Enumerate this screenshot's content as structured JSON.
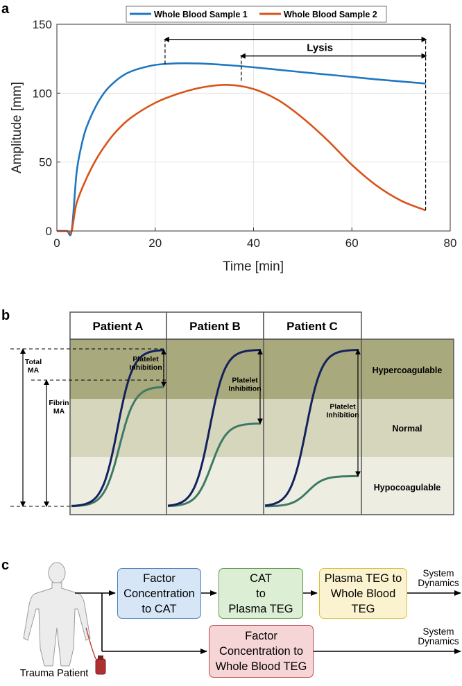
{
  "panels": {
    "a": "a",
    "b": "b",
    "c": "c"
  },
  "chart_data": [
    {
      "type": "line",
      "panel": "a",
      "xlabel": "Time [min]",
      "ylabel": "Amplitude [mm]",
      "xlim": [
        0,
        80
      ],
      "ylim": [
        0,
        150
      ],
      "xticks": [
        0,
        20,
        40,
        60,
        80
      ],
      "yticks": [
        0,
        50,
        100,
        150
      ],
      "grid": true,
      "legend_position": "top-center",
      "series": [
        {
          "name": "Whole Blood Sample 1",
          "color": "#1f77c0",
          "x": [
            0,
            2,
            3,
            4,
            5,
            6,
            8,
            10,
            12,
            14,
            16,
            18,
            20,
            22,
            24,
            26,
            28,
            30,
            35,
            40,
            45,
            50,
            55,
            60,
            65,
            70,
            75
          ],
          "y": [
            0,
            0,
            0,
            42,
            62,
            75,
            91,
            102,
            109,
            114,
            117,
            119,
            120.5,
            121.2,
            121.6,
            121.7,
            121.6,
            121.4,
            120.3,
            118.8,
            117,
            115.2,
            113.5,
            111.8,
            110,
            108.5,
            107
          ]
        },
        {
          "name": "Whole Blood Sample 2",
          "color": "#d95319",
          "x": [
            0,
            2,
            3,
            4,
            6,
            8,
            10,
            12,
            15,
            20,
            25,
            30,
            35,
            40,
            45,
            50,
            55,
            60,
            65,
            70,
            75
          ],
          "y": [
            0,
            0,
            0,
            20,
            38,
            52,
            63,
            72,
            82,
            93,
            100,
            104.5,
            106,
            103,
            95,
            82,
            66,
            48,
            33,
            22,
            15
          ]
        }
      ],
      "annotation": "Lysis"
    },
    {
      "type": "line",
      "panel": "b",
      "columns": [
        "Patient A",
        "Patient B",
        "Patient C"
      ],
      "zones": [
        "Hypercoagulable",
        "Normal",
        "Hypocoagulable"
      ],
      "zone_colors": [
        "#a8a97c",
        "#d6d6bd",
        "#eeede2"
      ],
      "left_labels": {
        "total": "Total\nMA",
        "fibrin": "Fibrin\nMA"
      },
      "annotation": "Platelet\nInhibition",
      "series": [
        {
          "name": "Total MA curve",
          "color": "#14215e",
          "plateau_fraction": [
            0.94,
            0.94,
            0.94
          ]
        },
        {
          "name": "Fibrin MA curve",
          "color": "#3d7a64",
          "plateau_fraction": [
            0.73,
            0.52,
            0.22
          ]
        }
      ]
    }
  ],
  "flow": {
    "patient_label": "Trauma Patient",
    "box1": "Factor\nConcentration\nto CAT",
    "box2": "CAT\nto\nPlasma TEG",
    "box3": "Plasma TEG to\nWhole Blood\nTEG",
    "box4": "Factor\nConcentration to\nWhole Blood TEG",
    "out1": "System\nDynamics",
    "out2": "System\nDynamics",
    "colors": {
      "box1_fill": "#d6e6f7",
      "box1_border": "#4a7fb8",
      "box2_fill": "#dcefd4",
      "box2_border": "#5d9a45",
      "box3_fill": "#fbf3cf",
      "box3_border": "#d9bf3b",
      "box4_fill": "#f6d5d6",
      "box4_border": "#b8484f"
    }
  }
}
